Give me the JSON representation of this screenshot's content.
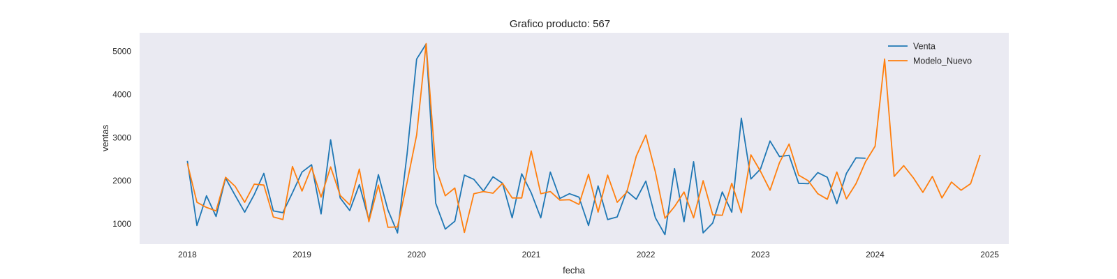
{
  "chart_data": {
    "type": "line",
    "title": "Grafico producto: 567",
    "xlabel": "fecha",
    "ylabel": "ventas",
    "xlim": [
      "2017-08-01",
      "2025-03-01"
    ],
    "ylim": [
      530,
      5430
    ],
    "x_ticks": [
      "2018",
      "2019",
      "2020",
      "2021",
      "2022",
      "2023",
      "2024",
      "2025"
    ],
    "y_ticks": [
      1000,
      2000,
      3000,
      4000,
      5000
    ],
    "grid": false,
    "legend_position": "top-right",
    "colors": {
      "plot_bg": "#eaeaf2",
      "Venta": "#1f77b4",
      "Modelo_Nuevo": "#ff7f0e"
    },
    "series": [
      {
        "name": "Venta",
        "x": [
          "2018-01",
          "2018-02",
          "2018-03",
          "2018-04",
          "2018-05",
          "2018-06",
          "2018-07",
          "2018-08",
          "2018-09",
          "2018-10",
          "2018-11",
          "2018-12",
          "2019-01",
          "2019-02",
          "2019-03",
          "2019-04",
          "2019-05",
          "2019-06",
          "2019-07",
          "2019-08",
          "2019-09",
          "2019-10",
          "2019-11",
          "2019-12",
          "2020-01",
          "2020-02",
          "2020-03",
          "2020-04",
          "2020-05",
          "2020-06",
          "2020-07",
          "2020-08",
          "2020-09",
          "2020-10",
          "2020-11",
          "2020-12",
          "2021-01",
          "2021-02",
          "2021-03",
          "2021-04",
          "2021-05",
          "2021-06",
          "2021-07",
          "2021-08",
          "2021-09",
          "2021-10",
          "2021-11",
          "2021-12",
          "2022-01",
          "2022-02",
          "2022-03",
          "2022-04",
          "2022-05",
          "2022-06",
          "2022-07",
          "2022-08",
          "2022-09",
          "2022-10",
          "2022-11",
          "2022-12",
          "2023-01",
          "2023-02",
          "2023-03",
          "2023-04",
          "2023-05",
          "2023-06",
          "2023-07",
          "2023-08",
          "2023-09",
          "2023-10",
          "2023-11",
          "2023-12"
        ],
        "values": [
          2460,
          960,
          1650,
          1170,
          2060,
          1660,
          1270,
          1680,
          2170,
          1300,
          1260,
          1720,
          2200,
          2370,
          1230,
          2950,
          1600,
          1310,
          1910,
          1090,
          2140,
          1320,
          790,
          2620,
          4820,
          5170,
          1480,
          880,
          1060,
          2130,
          2030,
          1760,
          2090,
          1940,
          1140,
          2160,
          1720,
          1140,
          2200,
          1590,
          1700,
          1620,
          960,
          1880,
          1100,
          1160,
          1760,
          1570,
          1990,
          1140,
          750,
          2280,
          1050,
          2440,
          790,
          1020,
          1740,
          1270,
          3450,
          2040,
          2270,
          2920,
          2560,
          2590,
          1940,
          1930,
          2190,
          2080,
          1470,
          2170,
          2530,
          2520
        ]
      },
      {
        "name": "Modelo_Nuevo",
        "x": [
          "2018-01",
          "2018-02",
          "2018-03",
          "2018-04",
          "2018-05",
          "2018-06",
          "2018-07",
          "2018-08",
          "2018-09",
          "2018-10",
          "2018-11",
          "2018-12",
          "2019-01",
          "2019-02",
          "2019-03",
          "2019-04",
          "2019-05",
          "2019-06",
          "2019-07",
          "2019-08",
          "2019-09",
          "2019-10",
          "2019-11",
          "2019-12",
          "2020-01",
          "2020-02",
          "2020-03",
          "2020-04",
          "2020-05",
          "2020-06",
          "2020-07",
          "2020-08",
          "2020-09",
          "2020-10",
          "2020-11",
          "2020-12",
          "2021-01",
          "2021-02",
          "2021-03",
          "2021-04",
          "2021-05",
          "2021-06",
          "2021-07",
          "2021-08",
          "2021-09",
          "2021-10",
          "2021-11",
          "2021-12",
          "2022-01",
          "2022-02",
          "2022-03",
          "2022-04",
          "2022-05",
          "2022-06",
          "2022-07",
          "2022-08",
          "2022-09",
          "2022-10",
          "2022-11",
          "2022-12",
          "2023-01",
          "2023-02",
          "2023-03",
          "2023-04",
          "2023-05",
          "2023-06",
          "2023-07",
          "2023-08",
          "2023-09",
          "2023-10",
          "2023-11",
          "2023-12",
          "2024-01",
          "2024-02",
          "2024-03",
          "2024-04",
          "2024-05",
          "2024-06",
          "2024-07",
          "2024-08",
          "2024-09",
          "2024-10",
          "2024-11",
          "2024-12"
        ],
        "values": [
          2400,
          1500,
          1380,
          1300,
          2080,
          1870,
          1500,
          1920,
          1900,
          1160,
          1100,
          2330,
          1760,
          2310,
          1620,
          2320,
          1660,
          1440,
          2270,
          1050,
          1900,
          920,
          930,
          1960,
          3060,
          5180,
          2300,
          1650,
          1830,
          800,
          1700,
          1750,
          1710,
          1940,
          1600,
          1600,
          2690,
          1700,
          1750,
          1550,
          1560,
          1450,
          2150,
          1270,
          2130,
          1500,
          1730,
          2570,
          3060,
          2200,
          1130,
          1400,
          1740,
          1140,
          2000,
          1210,
          1200,
          1940,
          1260,
          2600,
          2220,
          1780,
          2420,
          2850,
          2130,
          2000,
          1700,
          1570,
          2200,
          1580,
          1930,
          2440,
          2800,
          4820,
          2100,
          2350,
          2070,
          1730,
          2100,
          1600,
          1970,
          1780,
          1930,
          2600
        ]
      }
    ]
  }
}
